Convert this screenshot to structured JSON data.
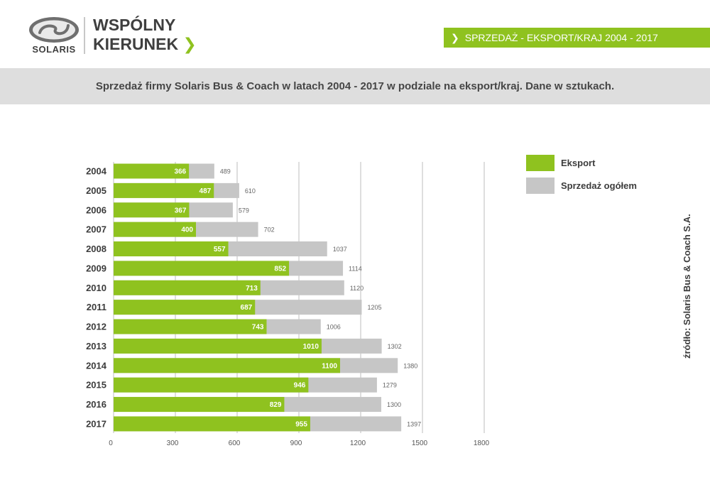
{
  "brand": {
    "logo_text": "SOLARIS",
    "tagline_line1": "WSPÓLNY",
    "tagline_line2": "KIERUNEK",
    "tagline_arrow": "❯"
  },
  "section_tag": {
    "chevron": "❯",
    "label": "SPRZEDAŻ - EKSPORT/KRAJ 2004 - 2017"
  },
  "subtitle": "Sprzedaż firmy Solaris Bus & Coach w latach 2004 - 2017 w podziale na eksport/kraj. Dane w sztukach.",
  "colors": {
    "green": "#8fc21f",
    "grey_bar": "#c6c6c6",
    "band": "#dedede",
    "gridline": "#bdbdbd"
  },
  "chart_data": {
    "type": "bar",
    "orientation": "horizontal",
    "categories": [
      "2004",
      "2005",
      "2006",
      "2007",
      "2008",
      "2009",
      "2010",
      "2011",
      "2012",
      "2013",
      "2014",
      "2015",
      "2016",
      "2017"
    ],
    "series": [
      {
        "name": "Eksport",
        "color": "#8fc21f",
        "values": [
          366,
          487,
          367,
          400,
          557,
          852,
          713,
          687,
          743,
          1010,
          1100,
          946,
          829,
          955
        ]
      },
      {
        "name": "Sprzedaż ogółem",
        "color": "#c6c6c6",
        "values": [
          489,
          610,
          579,
          702,
          1037,
          1114,
          1120,
          1205,
          1006,
          1302,
          1380,
          1279,
          1300,
          1397
        ]
      }
    ],
    "x_ticks": [
      0,
      300,
      600,
      900,
      1200,
      1500,
      1800
    ],
    "xlim": [
      0,
      1800
    ],
    "grid": true,
    "legend_position": "right"
  },
  "legend": [
    {
      "label": "Eksport",
      "color": "#8fc21f"
    },
    {
      "label": "Sprzedaż ogółem",
      "color": "#c6c6c6"
    }
  ],
  "source_text": "źródło:  Solaris Bus & Coach S.A."
}
